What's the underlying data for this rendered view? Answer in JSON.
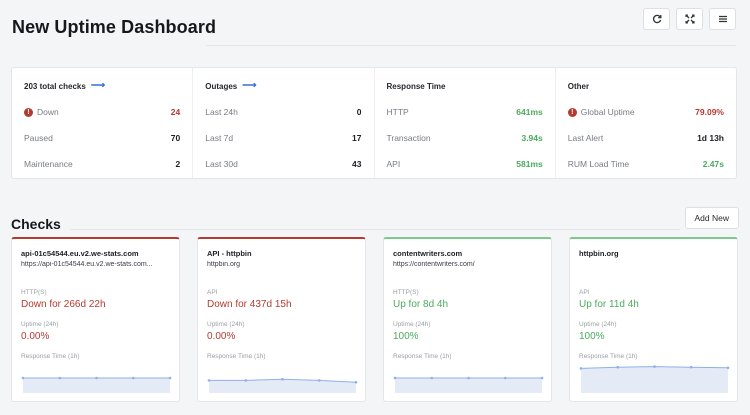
{
  "header": {
    "title": "New Uptime Dashboard"
  },
  "toolbar": {
    "refresh_icon": "refresh-icon",
    "fullscreen_icon": "fullscreen-icon",
    "menu_icon": "menu-icon"
  },
  "summary": {
    "checks": {
      "title": "203 total checks",
      "rows": [
        {
          "label": "Down",
          "value": "24"
        },
        {
          "label": "Paused",
          "value": "70"
        },
        {
          "label": "Maintenance",
          "value": "2"
        }
      ]
    },
    "outages": {
      "title": "Outages",
      "rows": [
        {
          "label": "Last 24h",
          "value": "0"
        },
        {
          "label": "Last 7d",
          "value": "17"
        },
        {
          "label": "Last 30d",
          "value": "43"
        }
      ]
    },
    "response": {
      "title": "Response Time",
      "rows": [
        {
          "label": "HTTP",
          "value": "641ms"
        },
        {
          "label": "Transaction",
          "value": "3.94s"
        },
        {
          "label": "API",
          "value": "581ms"
        }
      ]
    },
    "other": {
      "title": "Other",
      "rows": [
        {
          "label": "Global Uptime",
          "value": "79.09%"
        },
        {
          "label": "Last Alert",
          "value": "1d 13h"
        },
        {
          "label": "RUM Load Time",
          "value": "2.47s"
        }
      ]
    }
  },
  "checks": {
    "title": "Checks",
    "add_label": "Add New",
    "cards": [
      {
        "name": "api-01c54544.eu.v2.we-stats.com",
        "url": "https://api-01c54544.eu.v2.we-stats.com...",
        "type": "HTTP(S)",
        "status": "Down for 266d 22h",
        "uptime_label": "Uptime (24h)",
        "uptime": "0.00%",
        "rt_label": "Response Time (1h)",
        "state": "down",
        "spark": [
          0.5,
          0.5,
          0.5,
          0.5,
          0.5
        ]
      },
      {
        "name": "API - httpbin",
        "url": "httpbin.org",
        "type": "API",
        "status": "Down for 437d 15h",
        "uptime_label": "Uptime (24h)",
        "uptime": "0.00%",
        "rt_label": "Response Time (1h)",
        "state": "down",
        "spark": [
          0.42,
          0.42,
          0.46,
          0.42,
          0.36
        ]
      },
      {
        "name": "contentwriters.com",
        "url": "https://contentwriters.com/",
        "type": "HTTP(S)",
        "status": "Up for 8d 4h",
        "uptime_label": "Uptime (24h)",
        "uptime": "100%",
        "rt_label": "Response Time (1h)",
        "state": "up",
        "spark": [
          0.5,
          0.5,
          0.5,
          0.5,
          0.5
        ]
      },
      {
        "name": "httpbin.org",
        "url": "",
        "type": "API",
        "status": "Up for 11d 4h",
        "uptime_label": "Uptime (24h)",
        "uptime": "100%",
        "rt_label": "Response Time (1h)",
        "state": "up",
        "spark": [
          0.82,
          0.86,
          0.88,
          0.86,
          0.84
        ]
      }
    ]
  },
  "colors": {
    "down": "#b53a2f",
    "up": "#4aab5e",
    "spark_line": "#8fb0e6",
    "spark_fill": "#e4ebf7"
  }
}
